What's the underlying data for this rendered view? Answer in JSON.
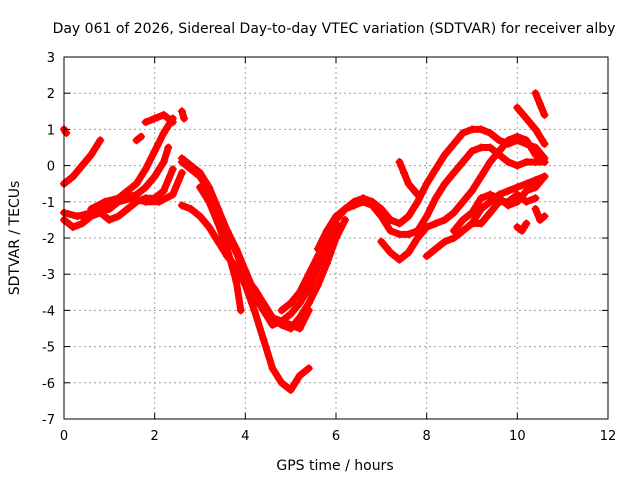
{
  "chart_data": {
    "type": "scatter",
    "title": "Day 061 of 2026, Sidereal Day-to-day VTEC variation (SDTVAR) for receiver alby",
    "xlabel": "GPS time / hours",
    "ylabel": "SDTVAR / TECUs",
    "xlim": [
      0,
      12
    ],
    "ylim": [
      -7,
      3
    ],
    "xticks": [
      "0",
      "2",
      "4",
      "6",
      "8",
      "10",
      "12"
    ],
    "yticks": [
      "3",
      "2",
      "1",
      "0",
      "-1",
      "-2",
      "-3",
      "-4",
      "-5",
      "-6",
      "-7"
    ],
    "grid": true,
    "marker": "+",
    "color": "#ff0000",
    "series": [
      {
        "x": [
          0.0,
          0.2,
          0.4,
          0.6,
          0.8
        ],
        "y": [
          -0.5,
          -0.3,
          0.0,
          0.3,
          0.7
        ]
      },
      {
        "x": [
          0.0,
          0.05
        ],
        "y": [
          1.0,
          0.9
        ]
      },
      {
        "x": [
          0.0,
          0.3,
          0.6,
          0.9,
          1.2,
          1.5,
          1.8,
          2.1,
          2.4,
          2.6
        ],
        "y": [
          -1.3,
          -1.4,
          -1.3,
          -1.2,
          -1.0,
          -0.9,
          -1.0,
          -1.0,
          -0.8,
          -0.2
        ]
      },
      {
        "x": [
          0.0,
          0.2,
          0.4,
          0.6,
          0.8,
          1.0,
          1.2,
          1.4,
          1.6,
          1.8,
          2.0,
          2.2,
          2.4
        ],
        "y": [
          -1.5,
          -1.7,
          -1.6,
          -1.4,
          -1.3,
          -1.5,
          -1.4,
          -1.2,
          -1.0,
          -0.9,
          -0.9,
          -0.7,
          -0.1
        ]
      },
      {
        "x": [
          0.4,
          0.7,
          1.0,
          1.3,
          1.6,
          1.8,
          2.0,
          2.2,
          2.3
        ],
        "y": [
          -1.4,
          -1.3,
          -1.2,
          -0.9,
          -0.8,
          -0.6,
          -0.3,
          0.1,
          0.5
        ]
      },
      {
        "x": [
          0.6,
          0.9,
          1.2,
          1.4,
          1.6,
          1.8,
          2.0,
          2.2,
          2.4
        ],
        "y": [
          -1.2,
          -1.0,
          -0.9,
          -0.7,
          -0.5,
          -0.1,
          0.4,
          0.9,
          1.3
        ]
      },
      {
        "x": [
          1.8,
          2.0,
          2.2,
          2.4
        ],
        "y": [
          1.2,
          1.3,
          1.4,
          1.2
        ]
      },
      {
        "x": [
          1.6,
          1.7
        ],
        "y": [
          0.7,
          0.8
        ]
      },
      {
        "x": [
          2.6,
          2.65
        ],
        "y": [
          1.5,
          1.3
        ]
      },
      {
        "x": [
          2.6,
          2.8,
          3.0,
          3.2,
          3.4,
          3.6,
          3.8,
          4.0,
          4.2,
          4.4,
          4.6,
          4.8,
          5.0,
          5.2,
          5.4
        ],
        "y": [
          0.2,
          0.0,
          -0.2,
          -0.6,
          -1.2,
          -1.8,
          -2.4,
          -3.0,
          -3.6,
          -4.0,
          -4.2,
          -4.3,
          -4.4,
          -4.5,
          -4.0
        ]
      },
      {
        "x": [
          2.6,
          2.8,
          3.0,
          3.2,
          3.4,
          3.6,
          3.8,
          4.0,
          4.2,
          4.4,
          4.6,
          4.8,
          5.0,
          5.2,
          5.4,
          5.6,
          5.8,
          6.0
        ],
        "y": [
          0.1,
          -0.1,
          -0.3,
          -0.7,
          -1.3,
          -1.8,
          -2.3,
          -2.9,
          -3.5,
          -4.0,
          -4.4,
          -4.3,
          -4.1,
          -3.8,
          -3.4,
          -2.8,
          -2.2,
          -1.6
        ]
      },
      {
        "x": [
          2.6,
          2.8,
          3.0,
          3.2,
          3.4,
          3.6,
          3.8,
          4.0,
          4.2,
          4.4,
          4.6,
          4.8,
          5.0,
          5.2,
          5.4,
          5.6,
          5.8,
          6.0,
          6.2
        ],
        "y": [
          -1.1,
          -1.2,
          -1.4,
          -1.7,
          -2.1,
          -2.5,
          -2.8,
          -3.1,
          -3.4,
          -3.8,
          -4.2,
          -4.4,
          -4.5,
          -4.2,
          -3.8,
          -3.3,
          -2.7,
          -2.0,
          -1.5
        ]
      },
      {
        "x": [
          3.0,
          3.2,
          3.4,
          3.6,
          3.8,
          3.9
        ],
        "y": [
          -0.6,
          -1.0,
          -1.6,
          -2.3,
          -3.2,
          -4.0
        ]
      },
      {
        "x": [
          3.6,
          3.8,
          4.0,
          4.2,
          4.4,
          4.6,
          4.8,
          5.0,
          5.2,
          5.4
        ],
        "y": [
          -2.5,
          -2.8,
          -3.3,
          -4.0,
          -4.8,
          -5.6,
          -6.0,
          -6.2,
          -5.8,
          -5.6
        ]
      },
      {
        "x": [
          4.8,
          5.0,
          5.2,
          5.4,
          5.6,
          5.8,
          6.0,
          6.2,
          6.4,
          6.6,
          6.8,
          7.0,
          7.2,
          7.4,
          7.6,
          7.8,
          8.0,
          8.2,
          8.4,
          8.6,
          8.8,
          9.0,
          9.2,
          9.4,
          9.6,
          9.8,
          10.0,
          10.2,
          10.4,
          10.6
        ],
        "y": [
          -4.0,
          -3.8,
          -3.5,
          -3.0,
          -2.5,
          -2.0,
          -1.5,
          -1.2,
          -1.0,
          -0.9,
          -1.0,
          -1.2,
          -1.5,
          -1.6,
          -1.4,
          -1.0,
          -0.5,
          -0.1,
          0.3,
          0.6,
          0.9,
          1.0,
          1.0,
          0.9,
          0.7,
          0.6,
          0.7,
          0.6,
          0.5,
          0.2
        ]
      },
      {
        "x": [
          5.6,
          5.8,
          6.0,
          6.2,
          6.4,
          6.6,
          6.8,
          7.0,
          7.2,
          7.4,
          7.6,
          7.8,
          8.0,
          8.2,
          8.4,
          8.6,
          8.8,
          9.0,
          9.2,
          9.4,
          9.6,
          9.8,
          10.0,
          10.2,
          10.4,
          10.6
        ],
        "y": [
          -2.3,
          -1.8,
          -1.4,
          -1.2,
          -1.1,
          -1.0,
          -1.1,
          -1.4,
          -1.8,
          -1.9,
          -1.9,
          -1.8,
          -1.4,
          -0.9,
          -0.5,
          -0.2,
          0.1,
          0.4,
          0.5,
          0.5,
          0.3,
          0.1,
          0.0,
          0.1,
          0.1,
          0.1
        ]
      },
      {
        "x": [
          7.0,
          7.2,
          7.4,
          7.6,
          7.8,
          8.0,
          8.2,
          8.4,
          8.6,
          8.8,
          9.0,
          9.2,
          9.4,
          9.6,
          9.8,
          10.0,
          10.2,
          10.4,
          10.6
        ],
        "y": [
          -2.1,
          -2.4,
          -2.6,
          -2.4,
          -2.0,
          -1.7,
          -1.6,
          -1.5,
          -1.3,
          -1.0,
          -0.7,
          -0.3,
          0.1,
          0.4,
          0.7,
          0.8,
          0.7,
          0.3,
          0.1
        ]
      },
      {
        "x": [
          7.4,
          7.5,
          7.6,
          7.8
        ],
        "y": [
          0.1,
          -0.2,
          -0.5,
          -0.8
        ]
      },
      {
        "x": [
          8.0,
          8.2,
          8.4,
          8.6,
          8.8,
          9.0,
          9.2,
          9.4,
          9.6,
          9.8,
          10.0,
          10.2,
          10.4,
          10.6
        ],
        "y": [
          -2.5,
          -2.3,
          -2.1,
          -2.0,
          -1.8,
          -1.6,
          -1.2,
          -1.0,
          -0.8,
          -0.7,
          -0.6,
          -0.5,
          -0.4,
          -0.3
        ]
      },
      {
        "x": [
          8.6,
          8.8,
          9.0,
          9.2,
          9.4,
          9.6,
          9.8,
          10.0,
          10.2,
          10.4,
          10.6
        ],
        "y": [
          -1.8,
          -1.5,
          -1.3,
          -0.9,
          -0.8,
          -0.9,
          -1.1,
          -1.0,
          -0.7,
          -0.6,
          -0.3
        ]
      },
      {
        "x": [
          9.0,
          9.2,
          9.4,
          9.6,
          9.8,
          10.0,
          10.2,
          10.4
        ],
        "y": [
          -1.6,
          -1.6,
          -1.3,
          -1.0,
          -1.0,
          -0.8,
          -1.0,
          -0.9
        ]
      },
      {
        "x": [
          10.0,
          10.1,
          10.2
        ],
        "y": [
          -1.7,
          -1.8,
          -1.6
        ]
      },
      {
        "x": [
          10.4,
          10.5,
          10.6
        ],
        "y": [
          -1.2,
          -1.5,
          -1.4
        ]
      },
      {
        "x": [
          10.0,
          10.2,
          10.4,
          10.6
        ],
        "y": [
          1.6,
          1.3,
          1.0,
          0.6
        ]
      },
      {
        "x": [
          10.4,
          10.5,
          10.6
        ],
        "y": [
          2.0,
          1.7,
          1.4
        ]
      }
    ]
  }
}
